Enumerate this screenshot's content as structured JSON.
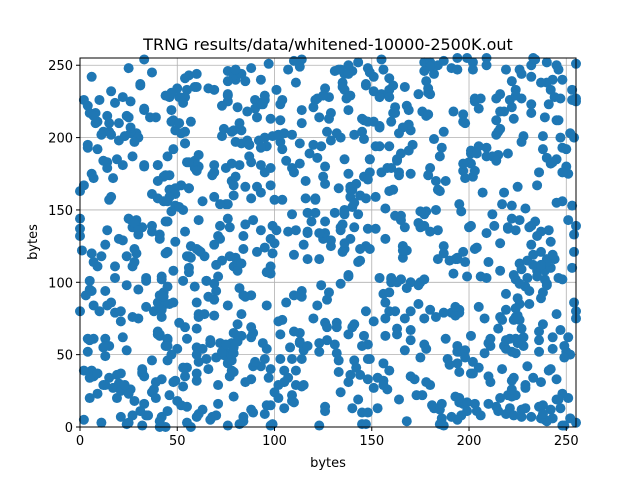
{
  "chart_data": {
    "type": "scatter",
    "title": "TRNG results/data/whitened-10000-2500K.out",
    "xlabel": "bytes",
    "ylabel": "bytes",
    "xlim": [
      0,
      255
    ],
    "ylim": [
      0,
      255
    ],
    "xticks": [
      0,
      50,
      100,
      150,
      200,
      250
    ],
    "yticks": [
      0,
      50,
      100,
      150,
      200,
      250
    ],
    "grid": true,
    "marker_color": "#1f77b4",
    "approx_point_count": 1100,
    "pattern_seed": 20250,
    "note": "uniform random-looking byte-pair scatter; individual points not legible"
  }
}
